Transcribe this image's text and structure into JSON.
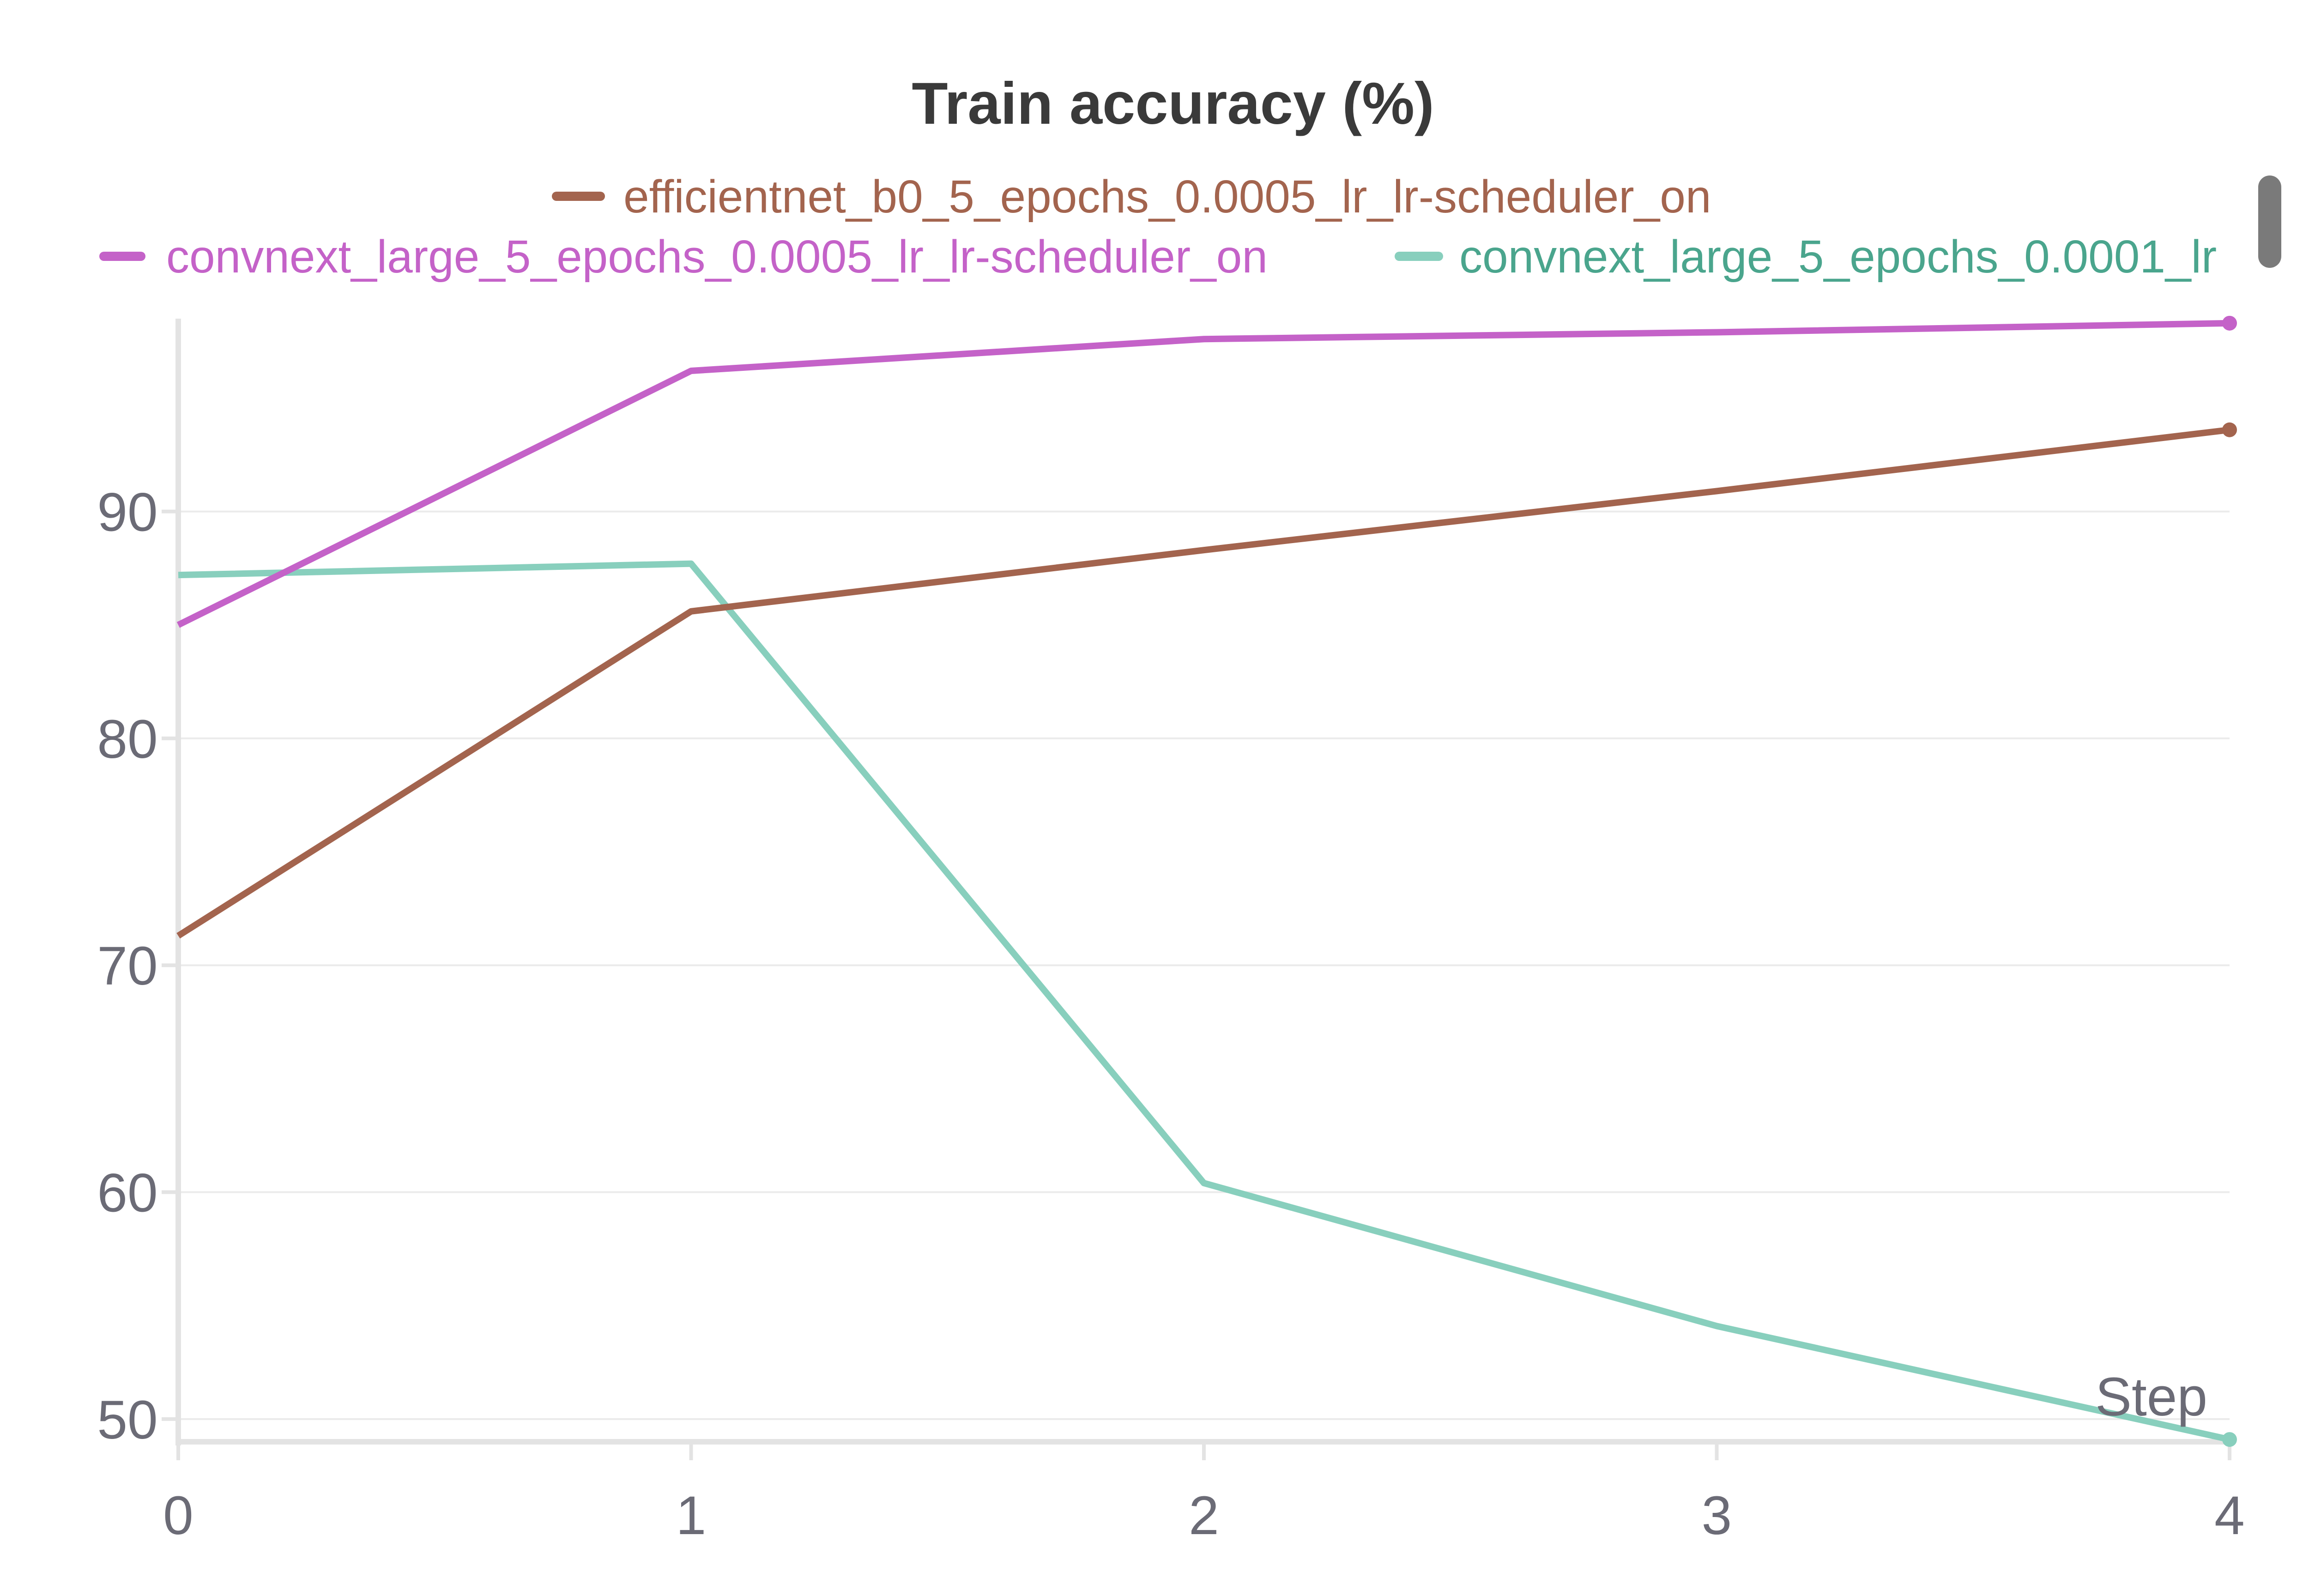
{
  "chart_data": {
    "type": "line",
    "title": "Train accuracy (%)",
    "xlabel": "Step",
    "ylabel": "",
    "x": [
      0,
      1,
      2,
      3,
      4
    ],
    "xlim": [
      0,
      4
    ],
    "ylim": [
      49,
      98.5
    ],
    "yticks": [
      50,
      60,
      70,
      80,
      90
    ],
    "xticks": [
      0,
      1,
      2,
      3,
      4
    ],
    "grid": true,
    "legend_position": "top",
    "series": [
      {
        "name": "efficientnet_b0_5_epochs_0.0005_lr_lr-scheduler_on",
        "color": "#a3644e",
        "values": [
          71.3,
          85.6,
          88.3,
          90.9,
          93.6
        ]
      },
      {
        "name": "convnext_large_5_epochs_0.0005_lr_lr-scheduler_on",
        "color": "#c462c8",
        "values": [
          85.0,
          96.2,
          97.6,
          97.9,
          98.3
        ]
      },
      {
        "name": "convnext_large_5_epochs_0.0001_lr",
        "color": "#88cfbd",
        "legend_text_color": "#4aa58d",
        "values": [
          87.2,
          87.7,
          60.4,
          54.1,
          49.1
        ]
      }
    ]
  }
}
